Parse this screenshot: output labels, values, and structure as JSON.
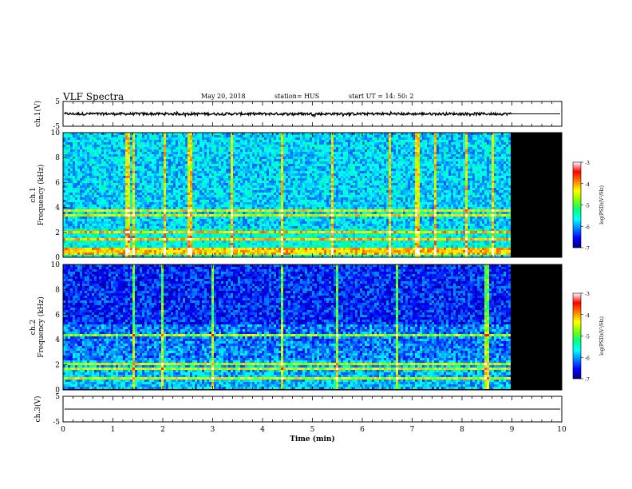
{
  "header": {
    "title": "VLF Spectra",
    "date": "May 20, 2018",
    "station": "station= HUS",
    "start": "start UT = 14: 50: 2"
  },
  "colors": {
    "colormap": [
      "#000080",
      "#0000ff",
      "#0080ff",
      "#00ffff",
      "#00ff80",
      "#80ff00",
      "#ffff00",
      "#ff8000",
      "#ff0000",
      "#ffffff"
    ],
    "background": "#000000",
    "axis": "#000000"
  },
  "chart_data": [
    {
      "type": "line",
      "name": "ch1-waveform",
      "ylabel": "ch.1(V)",
      "ylim": [
        -5,
        5
      ],
      "yticks": [
        "5",
        "-5"
      ],
      "xlim": [
        0,
        10
      ],
      "data_end_min": 9.0,
      "mean": 0,
      "noise_amplitude_v": 0.5
    },
    {
      "type": "heatmap",
      "name": "ch1-spectrogram",
      "ylabel": "ch.1\nFrequency (kHz)",
      "ylim": [
        0,
        10
      ],
      "yticks": [
        "0",
        "2",
        "4",
        "6",
        "8",
        "10"
      ],
      "xlim": [
        0,
        10
      ],
      "data_end_min": 9.0,
      "colorbar": {
        "label": "log(PSD)(V²/Hz)",
        "range": [
          -7,
          -3
        ],
        "ticks": [
          "-3",
          "-4",
          "-5",
          "-6",
          "-7"
        ]
      },
      "bright_bands_khz": [
        0.3,
        0.6,
        1.4,
        2.0,
        3.4,
        3.7
      ],
      "burst_times_min": [
        1.3,
        1.4,
        2.05,
        2.55,
        3.4,
        4.4,
        5.4,
        6.55,
        7.1,
        7.45,
        8.1,
        8.6
      ]
    },
    {
      "type": "heatmap",
      "name": "ch2-spectrogram",
      "ylabel": "ch.2\nFrequency (kHz)",
      "ylim": [
        0,
        10
      ],
      "yticks": [
        "0",
        "2",
        "4",
        "6",
        "8",
        "10"
      ],
      "xlim": [
        0,
        10
      ],
      "data_end_min": 9.0,
      "colorbar": {
        "label": "log(PSD)(V²/Hz)",
        "range": [
          -7,
          -3
        ],
        "ticks": [
          "-3",
          "-4",
          "-5",
          "-6",
          "-7"
        ]
      },
      "bright_bands_khz": [
        0.9,
        1.7,
        2.0,
        4.3
      ],
      "burst_times_min": [
        1.4,
        2.0,
        3.0,
        4.4,
        5.5,
        6.7,
        8.5
      ]
    },
    {
      "type": "line",
      "name": "ch3-waveform",
      "ylabel": "ch.3(V)",
      "ylim": [
        -5,
        5
      ],
      "yticks": [
        "5",
        "-5"
      ],
      "xlim": [
        0,
        10
      ],
      "xticks": [
        "0",
        "1",
        "2",
        "3",
        "4",
        "5",
        "6",
        "7",
        "8",
        "9",
        "10"
      ],
      "xlabel": "Time (min)",
      "mean": 0,
      "noise_amplitude_v": 0
    }
  ]
}
